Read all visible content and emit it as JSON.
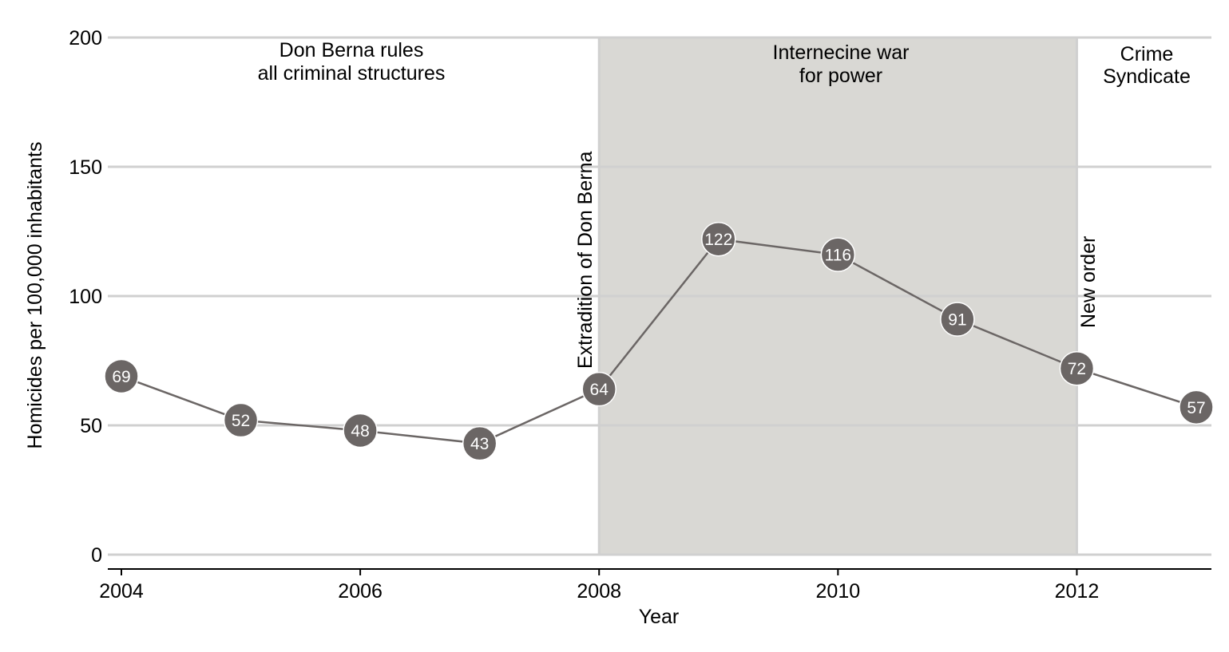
{
  "chart_data": {
    "type": "line",
    "xlabel": "Year",
    "ylabel": "Homicides per 100,000 inhabitants",
    "xlim": [
      2004,
      2013
    ],
    "ylim": [
      0,
      200
    ],
    "x_ticks": [
      2004,
      2006,
      2008,
      2010,
      2012
    ],
    "y_ticks": [
      0,
      50,
      100,
      150,
      200
    ],
    "grid": "horizontal",
    "series": [
      {
        "x": [
          2004,
          2005,
          2006,
          2007,
          2008,
          2009,
          2010,
          2011,
          2012,
          2013
        ],
        "values": [
          69,
          52,
          48,
          43,
          64,
          122,
          116,
          91,
          72,
          57
        ]
      }
    ],
    "shaded_region": {
      "x_start": 2008,
      "x_end": 2012,
      "color": "#d9d8d4"
    },
    "vlines": [
      2008,
      2012
    ],
    "period_labels": [
      {
        "lines": [
          "Don Berna rules",
          "all criminal structures"
        ]
      },
      {
        "lines": [
          "Internecine war",
          "for power"
        ]
      },
      {
        "lines": [
          "Crime",
          "Syndicate"
        ]
      }
    ],
    "event_labels": [
      {
        "x": 2008,
        "text": "Extradition of Don Berna"
      },
      {
        "x": 2012,
        "text": "New order"
      }
    ],
    "colors": {
      "line": "#6b6665",
      "marker": "#6b6665",
      "grid": "#d0d0d0",
      "shade": "#d9d8d4",
      "axis": "#000000"
    }
  }
}
